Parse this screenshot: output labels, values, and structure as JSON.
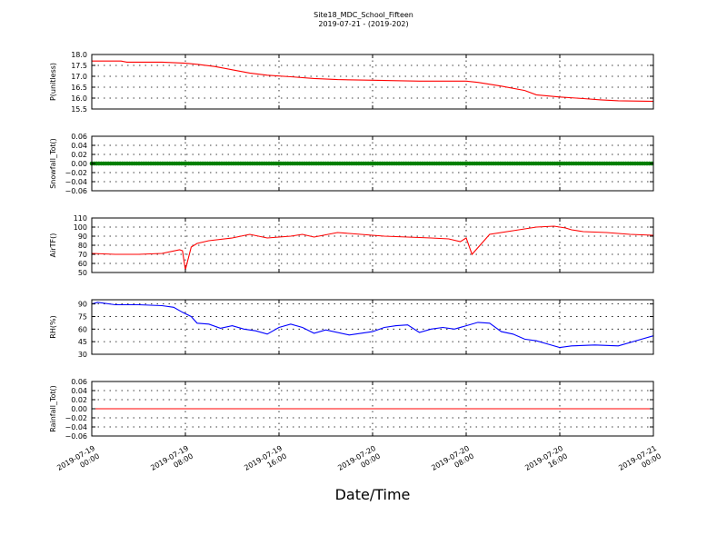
{
  "figure": {
    "title": "Site18_MDC_School_Fifteen",
    "subtitle": "2019-07-21 - (2019-202)",
    "xlabel": "Date/Time",
    "x_ticks": [
      {
        "line1": "2019-07-19",
        "line2": "00:00"
      },
      {
        "line1": "2019-07-19",
        "line2": "08:00"
      },
      {
        "line1": "2019-07-19",
        "line2": "16:00"
      },
      {
        "line1": "2019-07-20",
        "line2": "00:00"
      },
      {
        "line1": "2019-07-20",
        "line2": "08:00"
      },
      {
        "line1": "2019-07-20",
        "line2": "16:00"
      },
      {
        "line1": "2019-07-21",
        "line2": "00:00"
      }
    ]
  },
  "chart_data": [
    {
      "type": "line",
      "ylabel": "P(unitless)",
      "color": "#ff0000",
      "ylim": [
        15.5,
        18.0
      ],
      "yticks": [
        "15.5",
        "16.0",
        "16.5",
        "17.0",
        "17.5",
        "18.0"
      ],
      "xlim": [
        "2019-07-19 00:00",
        "2019-07-21 00:00"
      ],
      "grid": true,
      "x": [
        "2019-07-19 00:00",
        "2019-07-19 02:30",
        "2019-07-19 03:00",
        "2019-07-19 06:00",
        "2019-07-19 08:00",
        "2019-07-19 09:00",
        "2019-07-19 10:30",
        "2019-07-19 12:00",
        "2019-07-19 13:30",
        "2019-07-19 15:00",
        "2019-07-19 17:00",
        "2019-07-19 19:00",
        "2019-07-19 21:00",
        "2019-07-20 00:00",
        "2019-07-20 02:00",
        "2019-07-20 04:00",
        "2019-07-20 08:00",
        "2019-07-20 09:00",
        "2019-07-20 11:00",
        "2019-07-20 13:00",
        "2019-07-20 14:00",
        "2019-07-20 16:00",
        "2019-07-20 18:00",
        "2019-07-20 19:30",
        "2019-07-20 21:00",
        "2019-07-21 00:00"
      ],
      "values": [
        17.7,
        17.7,
        17.65,
        17.65,
        17.6,
        17.55,
        17.45,
        17.3,
        17.15,
        17.05,
        16.98,
        16.9,
        16.85,
        16.82,
        16.8,
        16.78,
        16.78,
        16.72,
        16.55,
        16.35,
        16.15,
        16.05,
        15.98,
        15.92,
        15.88,
        15.85
      ]
    },
    {
      "type": "scatter",
      "ylabel": "Snowfall_Tot()",
      "color": "#008000",
      "ylim": [
        -0.06,
        0.06
      ],
      "yticks": [
        "−0.06",
        "−0.04",
        "−0.02",
        "0.00",
        "0.02",
        "0.04",
        "0.06"
      ],
      "xlim": [
        "2019-07-19 00:00",
        "2019-07-21 00:00"
      ],
      "grid": true,
      "constant_value": 0.0,
      "note": "marker at every time step across the full range"
    },
    {
      "type": "line",
      "ylabel": "AirTF()",
      "color": "#ff0000",
      "ylim": [
        50,
        110
      ],
      "yticks": [
        "50",
        "60",
        "70",
        "80",
        "90",
        "100",
        "110"
      ],
      "xlim": [
        "2019-07-19 00:00",
        "2019-07-21 00:00"
      ],
      "grid": true,
      "x": [
        "2019-07-19 00:00",
        "2019-07-19 02:00",
        "2019-07-19 04:00",
        "2019-07-19 06:00",
        "2019-07-19 07:30",
        "2019-07-19 07:45",
        "2019-07-19 08:00",
        "2019-07-19 08:30",
        "2019-07-19 09:00",
        "2019-07-19 10:00",
        "2019-07-19 12:00",
        "2019-07-19 13:30",
        "2019-07-19 15:00",
        "2019-07-19 17:00",
        "2019-07-19 18:00",
        "2019-07-19 19:00",
        "2019-07-19 21:00",
        "2019-07-19 23:00",
        "2019-07-20 01:00",
        "2019-07-20 03:00",
        "2019-07-20 05:00",
        "2019-07-20 06:30",
        "2019-07-20 07:30",
        "2019-07-20 08:00",
        "2019-07-20 08:30",
        "2019-07-20 10:00",
        "2019-07-20 12:00",
        "2019-07-20 14:00",
        "2019-07-20 15:30",
        "2019-07-20 16:00",
        "2019-07-20 16:30",
        "2019-07-20 17:00",
        "2019-07-20 18:00",
        "2019-07-20 20:00",
        "2019-07-20 22:00",
        "2019-07-21 00:00"
      ],
      "values": [
        71,
        70,
        70,
        71,
        75,
        74,
        53,
        78,
        82,
        85,
        88,
        92,
        88,
        90,
        92,
        89,
        94,
        92,
        90,
        89,
        88,
        87,
        84,
        88,
        70,
        92,
        96,
        100,
        101,
        100,
        99,
        97,
        95,
        94,
        92,
        91
      ]
    },
    {
      "type": "line",
      "ylabel": "RH(%)",
      "color": "#0000ff",
      "ylim": [
        30,
        95
      ],
      "yticks": [
        "30",
        "45",
        "60",
        "75",
        "90"
      ],
      "xlim": [
        "2019-07-19 00:00",
        "2019-07-21 00:00"
      ],
      "grid": true,
      "x": [
        "2019-07-19 00:00",
        "2019-07-19 00:30",
        "2019-07-19 02:00",
        "2019-07-19 04:00",
        "2019-07-19 06:00",
        "2019-07-19 07:00",
        "2019-07-19 07:45",
        "2019-07-19 08:30",
        "2019-07-19 09:00",
        "2019-07-19 10:00",
        "2019-07-19 11:00",
        "2019-07-19 12:00",
        "2019-07-19 13:00",
        "2019-07-19 14:00",
        "2019-07-19 15:00",
        "2019-07-19 16:00",
        "2019-07-19 17:00",
        "2019-07-19 18:00",
        "2019-07-19 19:00",
        "2019-07-19 20:00",
        "2019-07-19 22:00",
        "2019-07-20 00:00",
        "2019-07-20 01:00",
        "2019-07-20 02:00",
        "2019-07-20 03:00",
        "2019-07-20 04:00",
        "2019-07-20 05:00",
        "2019-07-20 06:00",
        "2019-07-20 07:00",
        "2019-07-20 08:00",
        "2019-07-20 09:00",
        "2019-07-20 10:00",
        "2019-07-20 11:00",
        "2019-07-20 12:00",
        "2019-07-20 13:00",
        "2019-07-20 14:00",
        "2019-07-20 15:00",
        "2019-07-20 16:00",
        "2019-07-20 17:00",
        "2019-07-20 19:00",
        "2019-07-20 21:00",
        "2019-07-20 23:00",
        "2019-07-21 00:00"
      ],
      "values": [
        90,
        92,
        89,
        89,
        88,
        86,
        80,
        75,
        67,
        66,
        61,
        64,
        60,
        58,
        54,
        62,
        66,
        62,
        55,
        59,
        53,
        57,
        62,
        64,
        65,
        56,
        60,
        62,
        60,
        64,
        68,
        67,
        57,
        54,
        48,
        46,
        42,
        38,
        40,
        41,
        40,
        48,
        52
      ]
    },
    {
      "type": "line",
      "ylabel": "Rainfall_Tot()",
      "color": "#ff0000",
      "ylim": [
        -0.06,
        0.06
      ],
      "yticks": [
        "−0.06",
        "−0.04",
        "−0.02",
        "0.00",
        "0.02",
        "0.04",
        "0.06"
      ],
      "xlim": [
        "2019-07-19 00:00",
        "2019-07-21 00:00"
      ],
      "grid": true,
      "x": [
        "2019-07-19 00:00",
        "2019-07-21 00:00"
      ],
      "values": [
        0.0,
        0.0
      ]
    }
  ]
}
